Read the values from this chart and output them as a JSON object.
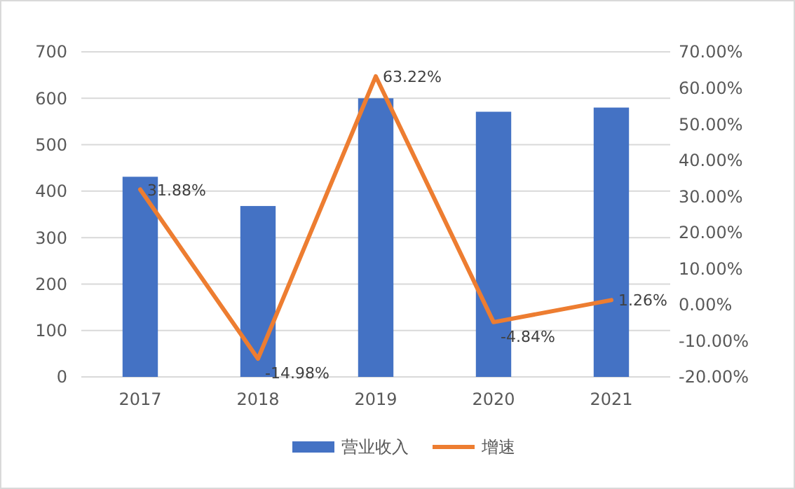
{
  "chart_data": {
    "type": "bar",
    "categories": [
      "2017",
      "2018",
      "2019",
      "2020",
      "2021"
    ],
    "series": [
      {
        "name": "营业收入",
        "color": "#4472c4",
        "values": [
          431,
          368,
          600,
          571,
          580
        ]
      },
      {
        "name": "增速",
        "type": "line",
        "axis": "y2",
        "color": "#ed7d31",
        "values": [
          31.88,
          -14.98,
          63.22,
          -4.84,
          1.26
        ],
        "value_labels": [
          "31.88%",
          "-14.98%",
          "63.22%",
          "-4.84%",
          "1.26%"
        ]
      }
    ],
    "ylim": [
      0,
      700
    ],
    "yticks": [
      0,
      100,
      200,
      300,
      400,
      500,
      600,
      700
    ],
    "y2lim": [
      -20,
      70
    ],
    "y2ticks": [
      {
        "value": -20,
        "label": "-20.00%"
      },
      {
        "value": -10,
        "label": "-10.00%"
      },
      {
        "value": 0,
        "label": "0.00%"
      },
      {
        "value": 10,
        "label": "10.00%"
      },
      {
        "value": 20,
        "label": "20.00%"
      },
      {
        "value": 30,
        "label": "30.00%"
      },
      {
        "value": 40,
        "label": "40.00%"
      },
      {
        "value": 50,
        "label": "50.00%"
      },
      {
        "value": 60,
        "label": "60.00%"
      },
      {
        "value": 70,
        "label": "70.00%"
      }
    ],
    "grid": "y",
    "legend": "bottom",
    "marker": "none"
  }
}
